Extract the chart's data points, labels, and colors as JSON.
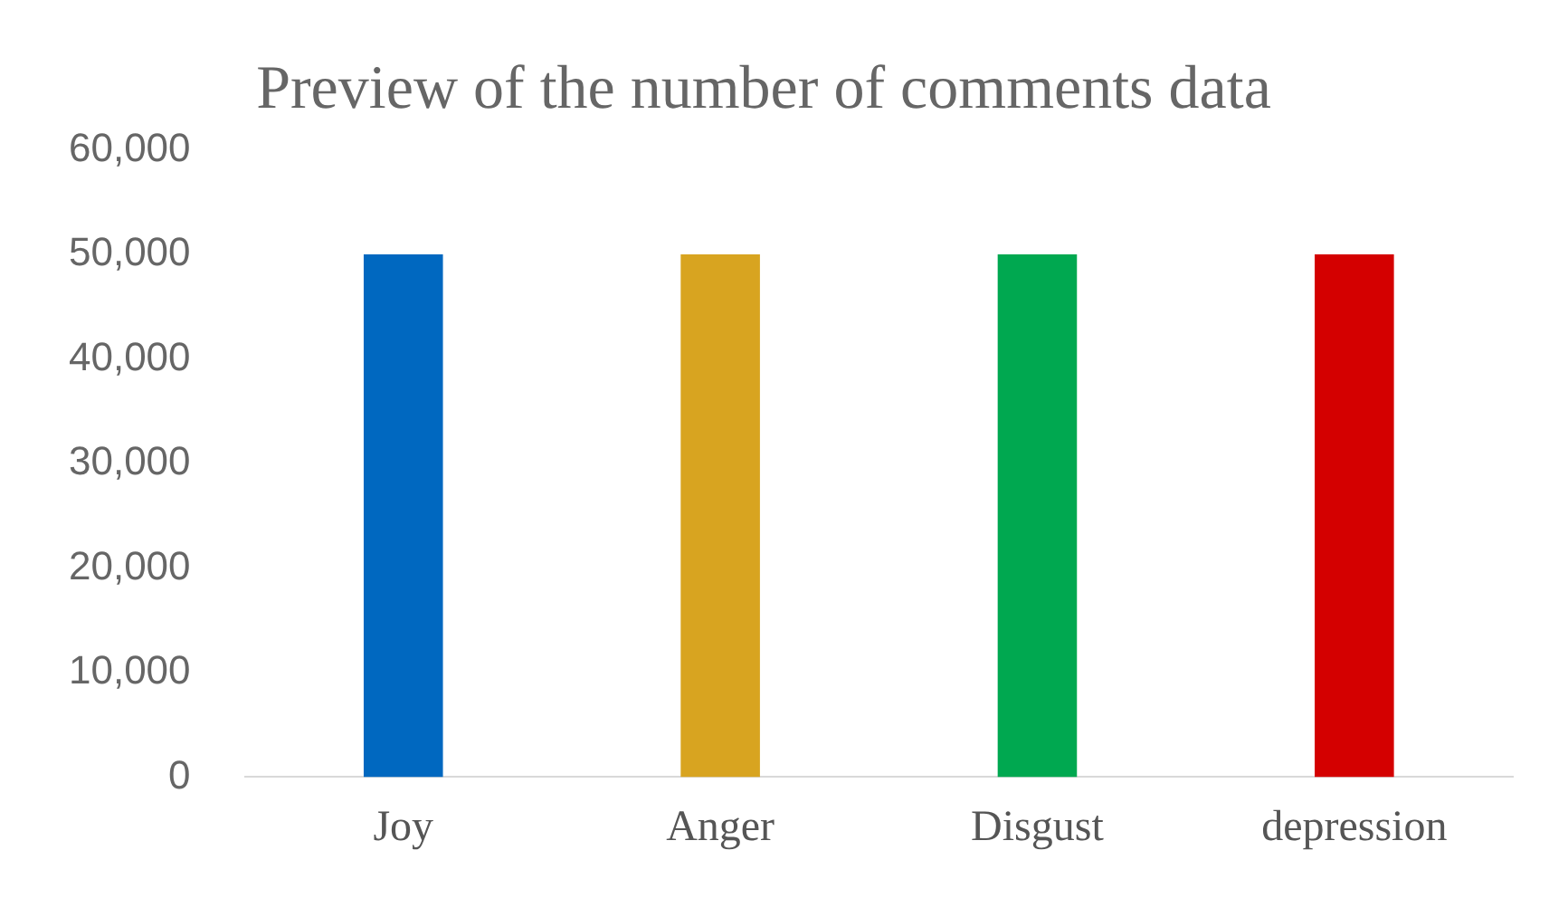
{
  "chart_data": {
    "type": "bar",
    "title": "Preview of the number of comments data",
    "categories": [
      "Joy",
      "Anger",
      "Disgust",
      "depression"
    ],
    "values": [
      50000,
      50000,
      50000,
      50000
    ],
    "colors": [
      "#0068c0",
      "#d8a420",
      "#00a850",
      "#d40000"
    ],
    "ylim": [
      0,
      60000
    ],
    "yticks": [
      0,
      {
        "value": 10000,
        "label": "10,000"
      },
      {
        "value": 20000,
        "label": "20,000"
      },
      {
        "value": 30000,
        "label": "30,000"
      },
      {
        "value": 40000,
        "label": "40,000"
      },
      {
        "value": 50000,
        "label": "50,000"
      },
      {
        "value": 60000,
        "label": "60,000"
      }
    ],
    "grid": false,
    "legend": false
  }
}
